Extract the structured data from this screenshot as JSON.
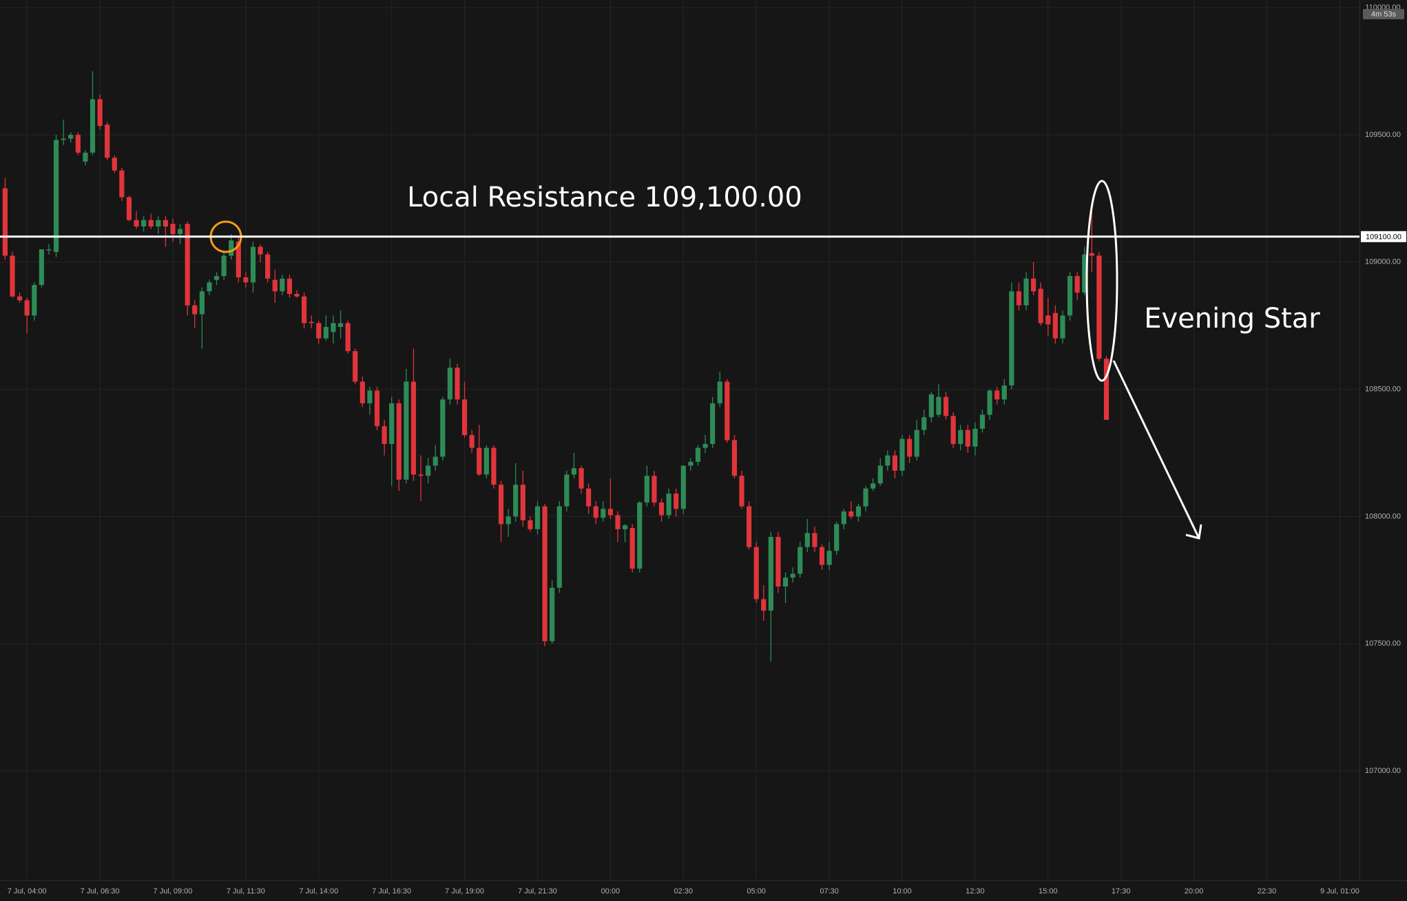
{
  "chart_data": {
    "type": "candlestick",
    "up_color": "#2e8b57",
    "down_color": "#e0353b",
    "xlim": [
      0.3,
      186.7
    ],
    "ylim": [
      106570,
      110030
    ],
    "xticks": [
      {
        "value": 4,
        "label": "7 Jul, 04:00"
      },
      {
        "value": 14,
        "label": "7 Jul, 06:30"
      },
      {
        "value": 24,
        "label": "7 Jul, 09:00"
      },
      {
        "value": 34,
        "label": "7 Jul, 11:30"
      },
      {
        "value": 44,
        "label": "7 Jul, 14:00"
      },
      {
        "value": 54,
        "label": "7 Jul, 16:30"
      },
      {
        "value": 64,
        "label": "7 Jul, 19:00"
      },
      {
        "value": 74,
        "label": "7 Jul, 21:30"
      },
      {
        "value": 84,
        "label": "00:00"
      },
      {
        "value": 94,
        "label": "02:30"
      },
      {
        "value": 104,
        "label": "05:00"
      },
      {
        "value": 114,
        "label": "07:30"
      },
      {
        "value": 124,
        "label": "10:00"
      },
      {
        "value": 134,
        "label": "12:30"
      },
      {
        "value": 144,
        "label": "15:00"
      },
      {
        "value": 154,
        "label": "17:30"
      },
      {
        "value": 164,
        "label": "20:00"
      },
      {
        "value": 174,
        "label": "22:30"
      },
      {
        "value": 184,
        "label": "9 Jul, 01:00"
      }
    ],
    "yticks": [
      {
        "value": 107000,
        "label": "107000.00"
      },
      {
        "value": 107500,
        "label": "107500.00"
      },
      {
        "value": 108000,
        "label": "108000.00"
      },
      {
        "value": 108500,
        "label": "108500.00"
      },
      {
        "value": 109000,
        "label": "109000.00"
      },
      {
        "value": 109500,
        "label": "109500.00"
      },
      {
        "value": 110000,
        "label": "110000.00"
      }
    ],
    "grid": true,
    "resistance": {
      "value": 109100,
      "label": "109100.00",
      "color": "#ffffff"
    },
    "resistance_annotation": "Local Resistance 109,100.00",
    "pattern_annotation": "Evening Star",
    "countdown": "4m 53s",
    "candles": [
      [
        109290,
        109330,
        109010,
        109025
      ],
      [
        109025,
        109040,
        108860,
        108865
      ],
      [
        108865,
        108880,
        108840,
        108850
      ],
      [
        108850,
        108860,
        108720,
        108790
      ],
      [
        108790,
        108920,
        108770,
        108910
      ],
      [
        108910,
        109050,
        108900,
        109050
      ],
      [
        109050,
        109070,
        109030,
        109050
      ],
      [
        109040,
        109500,
        109020,
        109480
      ],
      [
        109480,
        109560,
        109460,
        109485
      ],
      [
        109485,
        109510,
        109470,
        109500
      ],
      [
        109500,
        109510,
        109420,
        109430
      ],
      [
        109395,
        109440,
        109380,
        109430
      ],
      [
        109430,
        109750,
        109420,
        109640
      ],
      [
        109640,
        109660,
        109520,
        109535
      ],
      [
        109540,
        109550,
        109400,
        109410
      ],
      [
        109410,
        109420,
        109350,
        109360
      ],
      [
        109360,
        109370,
        109240,
        109255
      ],
      [
        109255,
        109260,
        109160,
        109165
      ],
      [
        109165,
        109200,
        109130,
        109140
      ],
      [
        109140,
        109180,
        109120,
        109165
      ],
      [
        109165,
        109190,
        109130,
        109140
      ],
      [
        109140,
        109180,
        109110,
        109165
      ],
      [
        109165,
        109180,
        109060,
        109140
      ],
      [
        109150,
        109170,
        109080,
        109110
      ],
      [
        109110,
        109150,
        109070,
        109130
      ],
      [
        109150,
        109160,
        108790,
        108830
      ],
      [
        108830,
        108850,
        108740,
        108795
      ],
      [
        108795,
        108900,
        108660,
        108885
      ],
      [
        108885,
        108930,
        108870,
        108920
      ],
      [
        108930,
        108960,
        108910,
        108945
      ],
      [
        108945,
        109040,
        108930,
        109025
      ],
      [
        109025,
        109110,
        109010,
        109085
      ],
      [
        109080,
        109100,
        108920,
        108940
      ],
      [
        108940,
        108960,
        108900,
        108920
      ],
      [
        108920,
        109080,
        108880,
        109060
      ],
      [
        109060,
        109070,
        109000,
        109030
      ],
      [
        109030,
        109040,
        108920,
        108935
      ],
      [
        108930,
        108970,
        108840,
        108885
      ],
      [
        108885,
        108950,
        108870,
        108935
      ],
      [
        108935,
        108950,
        108860,
        108875
      ],
      [
        108875,
        108890,
        108860,
        108865
      ],
      [
        108865,
        108880,
        108740,
        108760
      ],
      [
        108765,
        108790,
        108740,
        108760
      ],
      [
        108760,
        108770,
        108680,
        108700
      ],
      [
        108700,
        108790,
        108690,
        108745
      ],
      [
        108725,
        108790,
        108680,
        108760
      ],
      [
        108745,
        108810,
        108700,
        108760
      ],
      [
        108760,
        108770,
        108640,
        108650
      ],
      [
        108650,
        108660,
        108520,
        108530
      ],
      [
        108530,
        108550,
        108430,
        108445
      ],
      [
        108445,
        108510,
        108400,
        108495
      ],
      [
        108495,
        108510,
        108340,
        108355
      ],
      [
        108355,
        108380,
        108240,
        108285
      ],
      [
        108285,
        108470,
        108120,
        108445
      ],
      [
        108445,
        108460,
        108100,
        108145
      ],
      [
        108145,
        108580,
        108130,
        108530
      ],
      [
        108530,
        108660,
        108140,
        108165
      ],
      [
        108165,
        108240,
        108060,
        108160
      ],
      [
        108160,
        108230,
        108130,
        108200
      ],
      [
        108200,
        108280,
        108180,
        108235
      ],
      [
        108235,
        108470,
        108220,
        108460
      ],
      [
        108460,
        108620,
        108440,
        108585
      ],
      [
        108585,
        108600,
        108440,
        108460
      ],
      [
        108460,
        108530,
        108310,
        108320
      ],
      [
        108320,
        108340,
        108250,
        108270
      ],
      [
        108270,
        108360,
        108160,
        108165
      ],
      [
        108165,
        108280,
        108150,
        108270
      ],
      [
        108270,
        108280,
        108110,
        108125
      ],
      [
        108125,
        108140,
        107900,
        107970
      ],
      [
        107970,
        108030,
        107920,
        108000
      ],
      [
        108000,
        108210,
        107980,
        108125
      ],
      [
        108125,
        108180,
        107960,
        107985
      ],
      [
        107985,
        108000,
        107940,
        107950
      ],
      [
        107950,
        108060,
        107930,
        108040
      ],
      [
        108040,
        108050,
        107490,
        107510
      ],
      [
        107510,
        107750,
        107500,
        107720
      ],
      [
        107720,
        108060,
        107700,
        108040
      ],
      [
        108040,
        108180,
        108020,
        108165
      ],
      [
        108165,
        108250,
        108150,
        108190
      ],
      [
        108190,
        108200,
        108090,
        108110
      ],
      [
        108110,
        108130,
        108010,
        108040
      ],
      [
        108040,
        108060,
        107970,
        107995
      ],
      [
        107995,
        108060,
        107980,
        108030
      ],
      [
        108030,
        108150,
        107990,
        108005
      ],
      [
        108005,
        108020,
        107900,
        107950
      ],
      [
        107950,
        107970,
        107900,
        107965
      ],
      [
        107955,
        107970,
        107780,
        107795
      ],
      [
        107795,
        108060,
        107780,
        108055
      ],
      [
        108055,
        108200,
        108040,
        108160
      ],
      [
        108160,
        108180,
        108040,
        108055
      ],
      [
        108055,
        108070,
        107980,
        108005
      ],
      [
        108005,
        108110,
        107990,
        108090
      ],
      [
        108090,
        108110,
        108000,
        108030
      ],
      [
        108030,
        108200,
        108010,
        108200
      ],
      [
        108200,
        108230,
        108180,
        108215
      ],
      [
        108215,
        108280,
        108200,
        108270
      ],
      [
        108270,
        108320,
        108250,
        108285
      ],
      [
        108285,
        108470,
        108270,
        108445
      ],
      [
        108445,
        108570,
        108430,
        108530
      ],
      [
        108530,
        108540,
        108290,
        108300
      ],
      [
        108300,
        108320,
        108150,
        108160
      ],
      [
        108160,
        108180,
        108030,
        108040
      ],
      [
        108040,
        108060,
        107870,
        107880
      ],
      [
        107880,
        107900,
        107660,
        107675
      ],
      [
        107675,
        107730,
        107590,
        107630
      ],
      [
        107630,
        107940,
        107430,
        107920
      ],
      [
        107920,
        107940,
        107700,
        107725
      ],
      [
        107725,
        107780,
        107660,
        107760
      ],
      [
        107760,
        107800,
        107740,
        107775
      ],
      [
        107775,
        107900,
        107760,
        107880
      ],
      [
        107880,
        107990,
        107860,
        107935
      ],
      [
        107935,
        107960,
        107860,
        107880
      ],
      [
        107880,
        107890,
        107790,
        107810
      ],
      [
        107810,
        107900,
        107790,
        107865
      ],
      [
        107865,
        107980,
        107850,
        107970
      ],
      [
        107970,
        108030,
        107950,
        108020
      ],
      [
        108020,
        108060,
        107990,
        108000
      ],
      [
        108000,
        108050,
        107980,
        108040
      ],
      [
        108040,
        108120,
        108020,
        108110
      ],
      [
        108110,
        108150,
        108100,
        108130
      ],
      [
        108130,
        108230,
        108120,
        108200
      ],
      [
        108200,
        108260,
        108180,
        108240
      ],
      [
        108240,
        108260,
        108150,
        108180
      ],
      [
        108180,
        108320,
        108160,
        108305
      ],
      [
        108305,
        108320,
        108210,
        108235
      ],
      [
        108235,
        108380,
        108220,
        108340
      ],
      [
        108340,
        108420,
        108320,
        108390
      ],
      [
        108390,
        108490,
        108370,
        108480
      ],
      [
        108400,
        108520,
        108390,
        108470
      ],
      [
        108470,
        108490,
        108380,
        108395
      ],
      [
        108395,
        108410,
        108270,
        108285
      ],
      [
        108285,
        108360,
        108260,
        108340
      ],
      [
        108340,
        108360,
        108250,
        108275
      ],
      [
        108275,
        108370,
        108240,
        108345
      ],
      [
        108345,
        108420,
        108330,
        108400
      ],
      [
        108400,
        108500,
        108380,
        108495
      ],
      [
        108495,
        108510,
        108440,
        108460
      ],
      [
        108460,
        108540,
        108440,
        108515
      ],
      [
        108515,
        108920,
        108500,
        108885
      ],
      [
        108885,
        108920,
        108810,
        108830
      ],
      [
        108830,
        108960,
        108810,
        108935
      ],
      [
        108935,
        109000,
        108870,
        108885
      ],
      [
        108895,
        108920,
        108750,
        108760
      ],
      [
        108790,
        108860,
        108710,
        108755
      ],
      [
        108800,
        108830,
        108680,
        108700
      ],
      [
        108700,
        108810,
        108680,
        108790
      ],
      [
        108790,
        108960,
        108770,
        108945
      ],
      [
        108945,
        108960,
        108850,
        108880
      ],
      [
        108880,
        109060,
        108870,
        109030
      ],
      [
        109035,
        109220,
        108960,
        109025
      ],
      [
        109025,
        109040,
        108610,
        108620
      ],
      [
        108620,
        108630,
        108380,
        108380
      ]
    ]
  }
}
